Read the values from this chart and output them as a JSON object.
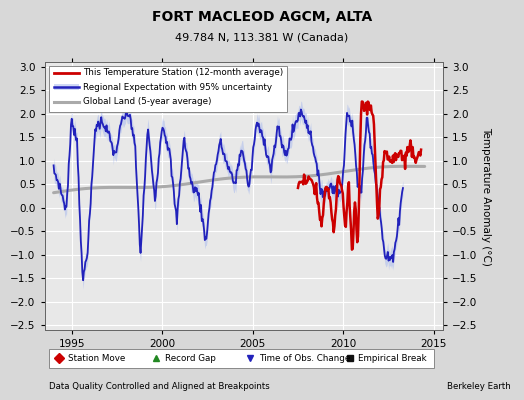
{
  "title": "FORT MACLEOD AGCM, ALTA",
  "subtitle": "49.784 N, 113.381 W (Canada)",
  "footer_left": "Data Quality Controlled and Aligned at Breakpoints",
  "footer_right": "Berkeley Earth",
  "ylabel": "Temperature Anomaly (°C)",
  "xlim": [
    1993.5,
    2015.5
  ],
  "ylim": [
    -2.6,
    3.1
  ],
  "yticks": [
    -2.5,
    -2,
    -1.5,
    -1,
    -0.5,
    0,
    0.5,
    1,
    1.5,
    2,
    2.5,
    3
  ],
  "xticks": [
    1995,
    2000,
    2005,
    2010,
    2015
  ],
  "bg_color": "#d8d8d8",
  "plot_bg_color": "#e8e8e8",
  "grid_color": "#ffffff",
  "station_color": "#cc0000",
  "regional_color": "#2222bb",
  "regional_band_color": "#aabbee",
  "global_color": "#aaaaaa",
  "legend_entries": [
    {
      "label": "This Temperature Station (12-month average)",
      "color": "#cc0000",
      "lw": 2.0
    },
    {
      "label": "Regional Expectation with 95% uncertainty",
      "color": "#2222bb",
      "lw": 1.8
    },
    {
      "label": "Global Land (5-year average)",
      "color": "#aaaaaa",
      "lw": 2.2
    }
  ],
  "bottom_legend": [
    {
      "label": "Station Move",
      "color": "#cc0000",
      "marker": "D"
    },
    {
      "label": "Record Gap",
      "color": "#228822",
      "marker": "^"
    },
    {
      "label": "Time of Obs. Change",
      "color": "#2222bb",
      "marker": "v"
    },
    {
      "label": "Empirical Break",
      "color": "#111111",
      "marker": "s"
    }
  ]
}
